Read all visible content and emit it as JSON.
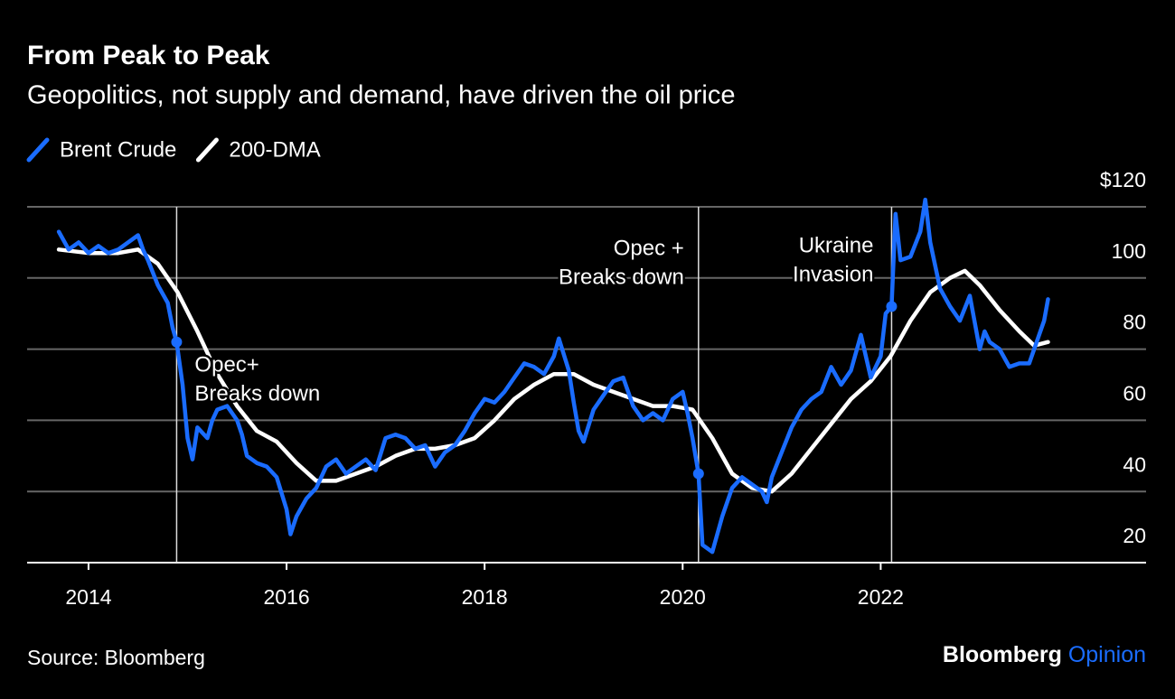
{
  "chart_data": {
    "type": "line",
    "title": "From Peak to Peak",
    "subtitle": "Geopolitics, not supply and demand, have driven the oil price",
    "source": "Source: Bloomberg",
    "xlim": [
      2013.38,
      2024.68
    ],
    "xticks": [
      2014,
      2016,
      2018,
      2020,
      2022
    ],
    "ylim": [
      20,
      120
    ],
    "yticks": [
      20,
      40,
      60,
      80,
      100,
      {
        "value": 120,
        "label": "$120"
      }
    ],
    "grid": true,
    "series": [
      {
        "name": "Brent Crude",
        "color": "#1a6cff",
        "x": [
          2013.7,
          2013.8,
          2013.9,
          2014.0,
          2014.1,
          2014.2,
          2014.3,
          2014.4,
          2014.5,
          2014.55,
          2014.6,
          2014.7,
          2014.8,
          2014.85,
          2014.89,
          2014.95,
          2015.0,
          2015.05,
          2015.1,
          2015.2,
          2015.25,
          2015.3,
          2015.4,
          2015.5,
          2015.55,
          2015.6,
          2015.7,
          2015.8,
          2015.9,
          2016.0,
          2016.04,
          2016.1,
          2016.2,
          2016.3,
          2016.4,
          2016.5,
          2016.6,
          2016.7,
          2016.8,
          2016.9,
          2017.0,
          2017.1,
          2017.2,
          2017.3,
          2017.4,
          2017.5,
          2017.6,
          2017.7,
          2017.8,
          2017.9,
          2018.0,
          2018.1,
          2018.2,
          2018.3,
          2018.4,
          2018.5,
          2018.6,
          2018.7,
          2018.75,
          2018.85,
          2018.9,
          2018.95,
          2019.0,
          2019.1,
          2019.2,
          2019.3,
          2019.4,
          2019.5,
          2019.6,
          2019.7,
          2019.8,
          2019.9,
          2020.0,
          2020.05,
          2020.1,
          2020.16,
          2020.2,
          2020.3,
          2020.4,
          2020.5,
          2020.6,
          2020.7,
          2020.8,
          2020.85,
          2020.9,
          2021.0,
          2021.1,
          2021.2,
          2021.3,
          2021.4,
          2021.5,
          2021.6,
          2021.7,
          2021.8,
          2021.9,
          2022.0,
          2022.05,
          2022.11,
          2022.15,
          2022.2,
          2022.3,
          2022.4,
          2022.45,
          2022.5,
          2022.6,
          2022.7,
          2022.8,
          2022.9,
          2023.0,
          2023.05,
          2023.1,
          2023.2,
          2023.3,
          2023.4,
          2023.5,
          2023.6,
          2023.65,
          2023.69
        ],
        "values": [
          113,
          108,
          110,
          107,
          109,
          107,
          108,
          110,
          112,
          108,
          105,
          98,
          93,
          86,
          82,
          70,
          55,
          49,
          58,
          55,
          60,
          63,
          64,
          60,
          56,
          50,
          48,
          47,
          44,
          35,
          28,
          33,
          38,
          41,
          47,
          49,
          45,
          47,
          49,
          46,
          55,
          56,
          55,
          52,
          53,
          47,
          51,
          53,
          57,
          62,
          66,
          65,
          68,
          72,
          76,
          75,
          73,
          78,
          83,
          74,
          65,
          57,
          54,
          63,
          67,
          71,
          72,
          64,
          60,
          62,
          60,
          66,
          68,
          62,
          55,
          45,
          25,
          23,
          33,
          41,
          44,
          42,
          40,
          37,
          44,
          51,
          58,
          63,
          66,
          68,
          75,
          70,
          74,
          84,
          72,
          78,
          90,
          92,
          118,
          105,
          106,
          113,
          122,
          110,
          97,
          92,
          88,
          95,
          80,
          85,
          82,
          80,
          75,
          76,
          76,
          84,
          88,
          94
        ]
      },
      {
        "name": "200-DMA",
        "color": "#ffffff",
        "x": [
          2013.7,
          2014.0,
          2014.3,
          2014.5,
          2014.7,
          2014.9,
          2015.1,
          2015.3,
          2015.5,
          2015.7,
          2015.9,
          2016.1,
          2016.3,
          2016.5,
          2016.7,
          2016.9,
          2017.1,
          2017.3,
          2017.5,
          2017.7,
          2017.9,
          2018.1,
          2018.3,
          2018.5,
          2018.7,
          2018.9,
          2019.1,
          2019.3,
          2019.5,
          2019.7,
          2019.9,
          2020.1,
          2020.3,
          2020.5,
          2020.7,
          2020.9,
          2021.1,
          2021.3,
          2021.5,
          2021.7,
          2021.9,
          2022.1,
          2022.3,
          2022.5,
          2022.7,
          2022.85,
          2023.0,
          2023.2,
          2023.4,
          2023.55,
          2023.69
        ],
        "values": [
          108,
          107,
          107,
          108,
          104,
          96,
          85,
          73,
          64,
          57,
          54,
          48,
          43,
          43,
          45,
          47,
          50,
          52,
          52,
          53,
          55,
          60,
          66,
          70,
          73,
          73,
          70,
          68,
          66,
          64,
          64,
          63,
          55,
          45,
          41,
          40,
          45,
          52,
          59,
          66,
          71,
          78,
          88,
          96,
          100,
          102,
          98,
          91,
          85,
          81,
          82
        ]
      }
    ],
    "annotations": [
      {
        "x": 2014.89,
        "y": 82,
        "lines": [
          "Opec+",
          "Breaks down"
        ]
      },
      {
        "x": 2020.16,
        "y": 45,
        "lines": [
          "Opec +",
          "Breaks down"
        ]
      },
      {
        "x": 2022.11,
        "y": 92,
        "lines": [
          "Ukraine",
          "Invasion"
        ]
      }
    ]
  },
  "branding": [
    "Bloomberg",
    "Opinion"
  ]
}
